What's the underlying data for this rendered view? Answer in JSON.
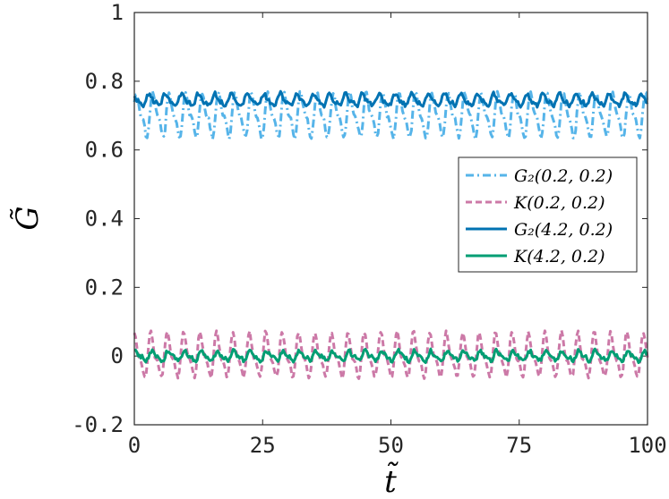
{
  "chart_data": {
    "type": "line",
    "xlabel": "t̃",
    "ylabel": "G̃",
    "xlim": [
      0,
      100
    ],
    "ylim": [
      -0.2,
      1
    ],
    "xticks": [
      0,
      25,
      50,
      75,
      100
    ],
    "yticks": [
      -0.2,
      0,
      0.2,
      0.4,
      0.6,
      0.8,
      1
    ],
    "xtick_labels": [
      "0",
      "25",
      "50",
      "75",
      "100"
    ],
    "ytick_labels": [
      "-0.2",
      "0",
      "0.2",
      "0.4",
      "0.6",
      "0.8",
      "1"
    ],
    "legend_position": "right",
    "series": [
      {
        "name": "G₂(0.2, 0.2)",
        "color": "#56B4E9",
        "style": "dashdot",
        "mean": 0.7,
        "amplitude": 0.055,
        "period": 3.2,
        "phase": 0.4,
        "noise": 0.012,
        "x_range": [
          0,
          100
        ]
      },
      {
        "name": "K(0.2, 0.2)",
        "color": "#CC79A7",
        "style": "dashed",
        "mean": 0.0,
        "amplitude": 0.055,
        "period": 3.2,
        "phase": 1.2,
        "noise": 0.01,
        "x_range": [
          0,
          100
        ]
      },
      {
        "name": "G₂(4.2, 0.2)",
        "color": "#0072B2",
        "style": "solid",
        "mean": 0.745,
        "amplitude": 0.015,
        "period": 3.2,
        "phase": 2.0,
        "noise": 0.012,
        "x_range": [
          0,
          100
        ]
      },
      {
        "name": "K(4.2, 0.2)",
        "color": "#009E73",
        "style": "solid",
        "mean": 0.0,
        "amplitude": 0.012,
        "period": 3.2,
        "phase": 0.8,
        "noise": 0.012,
        "x_range": [
          0,
          100
        ]
      }
    ]
  }
}
